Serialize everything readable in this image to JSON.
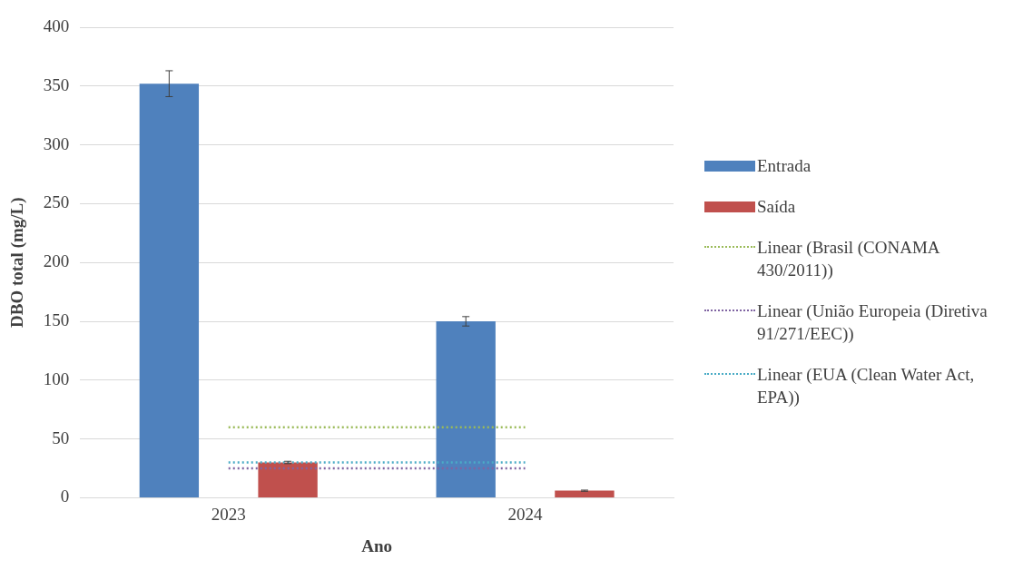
{
  "chart_data": {
    "type": "bar",
    "xlabel": "Ano",
    "ylabel": "DBO total (mg/L)",
    "categories": [
      "2023",
      "2024"
    ],
    "series": [
      {
        "name": "Entrada",
        "color": "#4f81bd",
        "values": [
          352,
          150
        ],
        "errors": [
          11,
          4
        ]
      },
      {
        "name": "Saída",
        "color": "#c0504d",
        "values": [
          30,
          6
        ],
        "errors": [
          1,
          0.5
        ]
      },
      {
        "name": "Linear (Brasil (CONAMA 430/2011))",
        "type": "line",
        "color": "#9bbb59",
        "values": [
          60,
          60
        ],
        "line_style": "dotted"
      },
      {
        "name": "Linear (União Europeia (Diretiva 91/271/EEC))",
        "type": "line",
        "color": "#8064a2",
        "values": [
          25,
          25
        ],
        "line_style": "dotted"
      },
      {
        "name": "Linear (EUA (Clean Water Act, EPA))",
        "type": "line",
        "color": "#4bacc6",
        "values": [
          30,
          30
        ],
        "line_style": "dotted"
      }
    ],
    "ylim": [
      0,
      400
    ],
    "yticks": [
      0,
      50,
      100,
      150,
      200,
      250,
      300,
      350,
      400
    ],
    "grid": "y",
    "legend": "right",
    "marker": "none"
  }
}
